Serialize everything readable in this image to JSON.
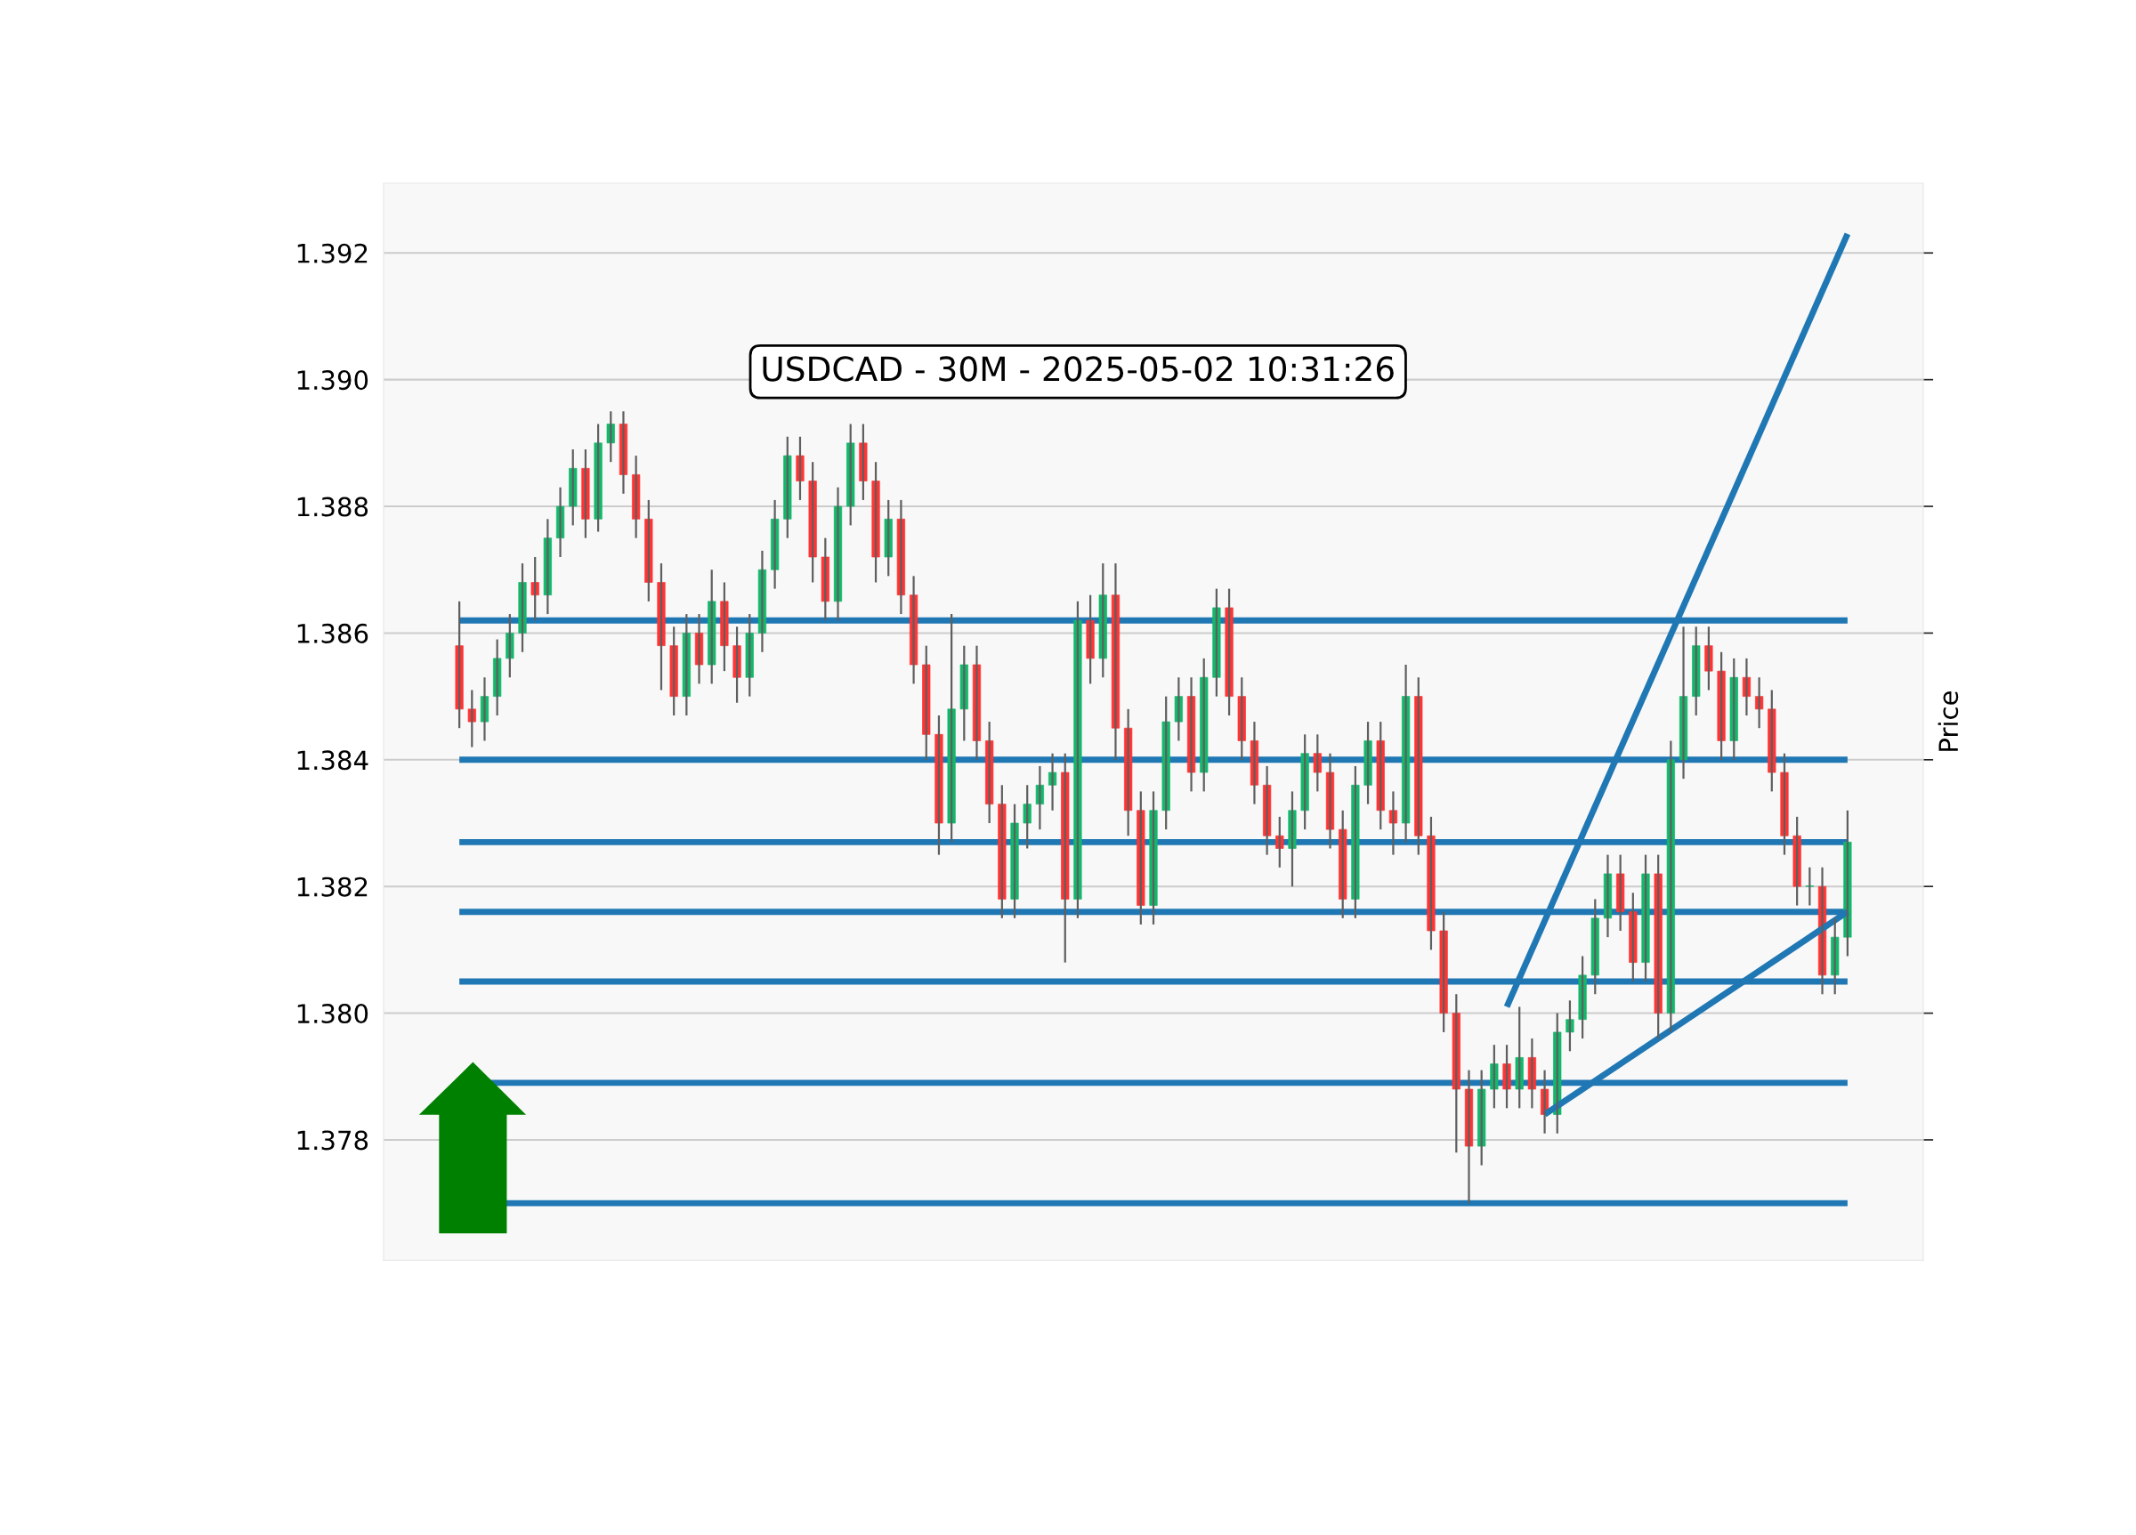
{
  "chart_data": {
    "type": "candlestick",
    "title": "USDCAD - 30M - 2025-05-02 10:31:26",
    "ylabel": "Price",
    "categories": [
      null,
      null,
      null,
      null,
      null,
      null,
      null,
      null,
      null,
      null,
      null,
      null,
      null,
      null,
      null,
      null,
      null,
      null,
      null,
      null,
      null,
      null,
      null,
      null,
      null,
      null,
      null,
      null,
      null,
      null,
      null,
      null,
      null,
      null,
      null,
      null,
      null,
      null,
      null,
      null,
      null,
      null,
      null,
      null,
      null,
      null,
      null,
      null,
      null,
      null,
      null,
      null,
      null,
      null,
      null,
      null,
      null,
      null,
      null,
      null,
      null,
      null,
      null,
      null,
      null,
      null,
      null,
      null,
      null,
      null,
      null,
      null,
      null,
      null,
      null,
      null,
      null,
      null,
      null,
      null,
      null,
      null,
      null,
      null,
      null,
      null,
      null,
      null,
      null,
      null,
      null,
      null,
      null,
      null,
      null,
      null,
      null,
      null,
      null,
      null,
      null,
      null,
      null,
      null,
      null,
      null,
      null,
      null,
      null,
      null,
      null
    ],
    "ohlc": [
      [
        1.3858,
        1.3865,
        1.3845,
        1.3848
      ],
      [
        1.3848,
        1.3851,
        1.3842,
        1.3846
      ],
      [
        1.3846,
        1.3853,
        1.3843,
        1.385
      ],
      [
        1.385,
        1.3859,
        1.3847,
        1.3856
      ],
      [
        1.3856,
        1.3863,
        1.3853,
        1.386
      ],
      [
        1.386,
        1.3871,
        1.3857,
        1.3868
      ],
      [
        1.3868,
        1.3872,
        1.3862,
        1.3866
      ],
      [
        1.3866,
        1.3878,
        1.3863,
        1.3875
      ],
      [
        1.3875,
        1.3883,
        1.3872,
        1.388
      ],
      [
        1.388,
        1.3889,
        1.3877,
        1.3886
      ],
      [
        1.3886,
        1.3889,
        1.3875,
        1.3878
      ],
      [
        1.3878,
        1.3893,
        1.3876,
        1.389
      ],
      [
        1.389,
        1.3895,
        1.3887,
        1.3893
      ],
      [
        1.3893,
        1.3895,
        1.3882,
        1.3885
      ],
      [
        1.3885,
        1.3888,
        1.3875,
        1.3878
      ],
      [
        1.3878,
        1.3881,
        1.3865,
        1.3868
      ],
      [
        1.3868,
        1.3871,
        1.3851,
        1.3858
      ],
      [
        1.3858,
        1.3861,
        1.3847,
        1.385
      ],
      [
        1.385,
        1.3863,
        1.3847,
        1.386
      ],
      [
        1.386,
        1.3863,
        1.3852,
        1.3855
      ],
      [
        1.3855,
        1.387,
        1.3852,
        1.3865
      ],
      [
        1.3865,
        1.3868,
        1.3854,
        1.3858
      ],
      [
        1.3858,
        1.3861,
        1.3849,
        1.3853
      ],
      [
        1.3853,
        1.3863,
        1.385,
        1.386
      ],
      [
        1.386,
        1.3873,
        1.3857,
        1.387
      ],
      [
        1.387,
        1.3881,
        1.3867,
        1.3878
      ],
      [
        1.3878,
        1.3891,
        1.3875,
        1.3888
      ],
      [
        1.3888,
        1.3891,
        1.3881,
        1.3884
      ],
      [
        1.3884,
        1.3887,
        1.3868,
        1.3872
      ],
      [
        1.3872,
        1.3875,
        1.3862,
        1.3865
      ],
      [
        1.3865,
        1.3883,
        1.3862,
        1.388
      ],
      [
        1.388,
        1.3893,
        1.3877,
        1.389
      ],
      [
        1.389,
        1.3893,
        1.3881,
        1.3884
      ],
      [
        1.3884,
        1.3887,
        1.3868,
        1.3872
      ],
      [
        1.3872,
        1.3881,
        1.3869,
        1.3878
      ],
      [
        1.3878,
        1.3881,
        1.3863,
        1.3866
      ],
      [
        1.3866,
        1.3869,
        1.3852,
        1.3855
      ],
      [
        1.3855,
        1.3858,
        1.384,
        1.3844
      ],
      [
        1.3844,
        1.3847,
        1.3825,
        1.383
      ],
      [
        1.383,
        1.3863,
        1.3827,
        1.3848
      ],
      [
        1.3848,
        1.3858,
        1.3843,
        1.3855
      ],
      [
        1.3855,
        1.3858,
        1.384,
        1.3843
      ],
      [
        1.3843,
        1.3846,
        1.383,
        1.3833
      ],
      [
        1.3833,
        1.3836,
        1.3815,
        1.3818
      ],
      [
        1.3818,
        1.3833,
        1.3815,
        1.383
      ],
      [
        1.383,
        1.3836,
        1.3826,
        1.3833
      ],
      [
        1.3833,
        1.3839,
        1.3829,
        1.3836
      ],
      [
        1.3836,
        1.3841,
        1.3832,
        1.3838
      ],
      [
        1.3838,
        1.3841,
        1.3808,
        1.3818
      ],
      [
        1.3818,
        1.3865,
        1.3815,
        1.3862
      ],
      [
        1.3862,
        1.3866,
        1.3852,
        1.3856
      ],
      [
        1.3856,
        1.3871,
        1.3853,
        1.3866
      ],
      [
        1.3866,
        1.3871,
        1.384,
        1.3845
      ],
      [
        1.3845,
        1.3848,
        1.3828,
        1.3832
      ],
      [
        1.3832,
        1.3835,
        1.3814,
        1.3817
      ],
      [
        1.3817,
        1.3835,
        1.3814,
        1.3832
      ],
      [
        1.3832,
        1.385,
        1.3829,
        1.3846
      ],
      [
        1.3846,
        1.3853,
        1.3843,
        1.385
      ],
      [
        1.385,
        1.3853,
        1.3835,
        1.3838
      ],
      [
        1.3838,
        1.3856,
        1.3835,
        1.3853
      ],
      [
        1.3853,
        1.3867,
        1.385,
        1.3864
      ],
      [
        1.3864,
        1.3867,
        1.3847,
        1.385
      ],
      [
        1.385,
        1.3853,
        1.384,
        1.3843
      ],
      [
        1.3843,
        1.3846,
        1.3833,
        1.3836
      ],
      [
        1.3836,
        1.3839,
        1.3825,
        1.3828
      ],
      [
        1.3828,
        1.3831,
        1.3823,
        1.3826
      ],
      [
        1.3826,
        1.3835,
        1.382,
        1.3832
      ],
      [
        1.3832,
        1.3844,
        1.3829,
        1.3841
      ],
      [
        1.3841,
        1.3844,
        1.3835,
        1.3838
      ],
      [
        1.3838,
        1.3841,
        1.3826,
        1.3829
      ],
      [
        1.3829,
        1.3832,
        1.3815,
        1.3818
      ],
      [
        1.3818,
        1.3839,
        1.3815,
        1.3836
      ],
      [
        1.3836,
        1.3846,
        1.3833,
        1.3843
      ],
      [
        1.3843,
        1.3846,
        1.3829,
        1.3832
      ],
      [
        1.3832,
        1.3835,
        1.3825,
        1.383
      ],
      [
        1.383,
        1.3855,
        1.3827,
        1.385
      ],
      [
        1.385,
        1.3853,
        1.3825,
        1.3828
      ],
      [
        1.3828,
        1.3831,
        1.381,
        1.3813
      ],
      [
        1.3813,
        1.3816,
        1.3797,
        1.38
      ],
      [
        1.38,
        1.3803,
        1.3778,
        1.3788
      ],
      [
        1.3788,
        1.3791,
        1.377,
        1.3779
      ],
      [
        1.3779,
        1.3791,
        1.3776,
        1.3788
      ],
      [
        1.3788,
        1.3795,
        1.3785,
        1.3792
      ],
      [
        1.3792,
        1.3795,
        1.3785,
        1.3788
      ],
      [
        1.3788,
        1.3801,
        1.3785,
        1.3793
      ],
      [
        1.3793,
        1.3796,
        1.3785,
        1.3788
      ],
      [
        1.3788,
        1.3791,
        1.3781,
        1.3784
      ],
      [
        1.3784,
        1.38,
        1.3781,
        1.3797
      ],
      [
        1.3797,
        1.3802,
        1.3794,
        1.3799
      ],
      [
        1.3799,
        1.3809,
        1.3796,
        1.3806
      ],
      [
        1.3806,
        1.3818,
        1.3803,
        1.3815
      ],
      [
        1.3815,
        1.3825,
        1.3812,
        1.3822
      ],
      [
        1.3822,
        1.3825,
        1.3813,
        1.3816
      ],
      [
        1.3816,
        1.3819,
        1.3805,
        1.3808
      ],
      [
        1.3808,
        1.3825,
        1.3805,
        1.3822
      ],
      [
        1.3822,
        1.3825,
        1.3796,
        1.38
      ],
      [
        1.38,
        1.3843,
        1.3797,
        1.384
      ],
      [
        1.384,
        1.3861,
        1.3837,
        1.385
      ],
      [
        1.385,
        1.3861,
        1.3847,
        1.3858
      ],
      [
        1.3858,
        1.3861,
        1.3851,
        1.3854
      ],
      [
        1.3854,
        1.3857,
        1.384,
        1.3843
      ],
      [
        1.3843,
        1.3856,
        1.384,
        1.3853
      ],
      [
        1.3853,
        1.3856,
        1.3847,
        1.385
      ],
      [
        1.385,
        1.3853,
        1.3845,
        1.3848
      ],
      [
        1.3848,
        1.3851,
        1.3835,
        1.3838
      ],
      [
        1.3838,
        1.3841,
        1.3825,
        1.3828
      ],
      [
        1.3828,
        1.3831,
        1.3817,
        1.382
      ],
      [
        1.382,
        1.3823,
        1.3817,
        1.382
      ],
      [
        1.382,
        1.3823,
        1.3803,
        1.3806
      ],
      [
        1.3806,
        1.3815,
        1.3803,
        1.3812
      ],
      [
        1.3812,
        1.3832,
        1.3809,
        1.3827
      ]
    ],
    "series": [
      {
        "type": "line",
        "color": "#1f77b4",
        "values": [
          null,
          null,
          null,
          null,
          null,
          null,
          null,
          null,
          null,
          null,
          null,
          null,
          null,
          null,
          null,
          null,
          null,
          null,
          null,
          null,
          null,
          null,
          null,
          null,
          null,
          null,
          null,
          null,
          null,
          null,
          null,
          null,
          null,
          null,
          null,
          null,
          null,
          null,
          null,
          null,
          null,
          null,
          null,
          null,
          null,
          null,
          null,
          null,
          null,
          null,
          null,
          null,
          null,
          null,
          null,
          null,
          null,
          null,
          null,
          null,
          null,
          null,
          null,
          null,
          null,
          null,
          null,
          null,
          null,
          null,
          null,
          null,
          null,
          null,
          null,
          null,
          null,
          null,
          null,
          null,
          null,
          null,
          null,
          1.3801,
          null,
          null,
          null,
          null,
          null,
          null,
          null,
          null,
          null,
          null,
          null,
          null,
          null,
          null,
          null,
          null,
          null,
          null,
          null,
          null,
          null,
          null,
          null,
          null,
          null,
          null,
          1.3923
        ]
      },
      {
        "type": "line",
        "color": "#1f77b4",
        "values": [
          null,
          null,
          null,
          null,
          null,
          null,
          null,
          null,
          null,
          null,
          null,
          null,
          null,
          null,
          null,
          null,
          null,
          null,
          null,
          null,
          null,
          null,
          null,
          null,
          null,
          null,
          null,
          null,
          null,
          null,
          null,
          null,
          null,
          null,
          null,
          null,
          null,
          null,
          null,
          null,
          null,
          null,
          null,
          null,
          null,
          null,
          null,
          null,
          null,
          null,
          null,
          null,
          null,
          null,
          null,
          null,
          null,
          null,
          null,
          null,
          null,
          null,
          null,
          null,
          null,
          null,
          null,
          null,
          null,
          null,
          null,
          null,
          null,
          null,
          null,
          null,
          null,
          null,
          null,
          null,
          null,
          null,
          null,
          null,
          null,
          null,
          1.3784,
          null,
          null,
          null,
          null,
          null,
          null,
          null,
          null,
          null,
          null,
          null,
          null,
          null,
          null,
          null,
          null,
          null,
          null,
          null,
          null,
          null,
          null,
          null,
          1.3816
        ]
      }
    ],
    "ref_lines": [
      {
        "axis": "y",
        "value": 1.3862,
        "color": "#1f77b4"
      },
      {
        "axis": "y",
        "value": 1.384,
        "color": "#1f77b4"
      },
      {
        "axis": "y",
        "value": 1.3827,
        "color": "#1f77b4"
      },
      {
        "axis": "y",
        "value": 1.3816,
        "color": "#1f77b4"
      },
      {
        "axis": "y",
        "value": 1.3805,
        "color": "#1f77b4"
      },
      {
        "axis": "y",
        "value": 1.3789,
        "color": "#1f77b4"
      },
      {
        "axis": "y",
        "value": 1.377,
        "color": "#1f77b4"
      }
    ],
    "ylim": [
      1.3761,
      1.3931
    ],
    "yticks": [
      {
        "value": 1.378,
        "label": "1.378"
      },
      {
        "value": 1.38,
        "label": "1.380"
      },
      {
        "value": 1.382,
        "label": "1.382"
      },
      {
        "value": 1.384,
        "label": "1.384"
      },
      {
        "value": 1.386,
        "label": "1.386"
      },
      {
        "value": 1.388,
        "label": "1.388"
      },
      {
        "value": 1.39,
        "label": "1.390"
      },
      {
        "value": 1.392,
        "label": "1.392"
      }
    ],
    "grid": "y",
    "tick_labels": "y"
  }
}
